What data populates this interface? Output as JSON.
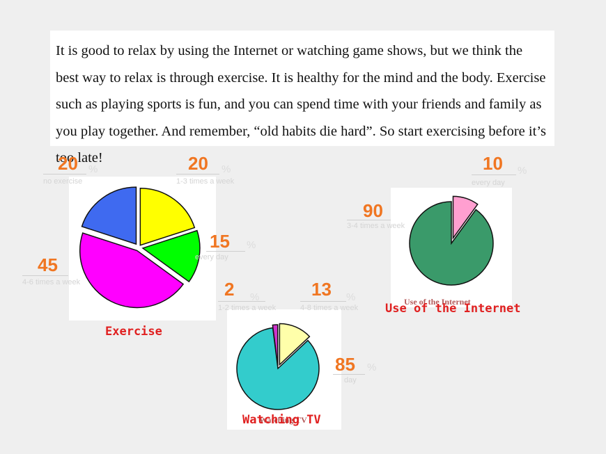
{
  "passage": {
    "text": "It is good to relax by using the Internet or watching game shows, but we think the best way to relax is through exercise. It is healthy for the mind and the body. Exercise such as playing sports is fun, and you can spend time with your friends and family as you play together. And remember, “old habits die hard”. So start exercising before it’s too late!"
  },
  "labels": {
    "percent_sign": "%",
    "no_exercise": "no exercise",
    "once_a_week": "1-3 times a week",
    "every_day": "every day",
    "four_six": "4-6 times a week",
    "three_four": "3-4 times a week",
    "one_two": "1-2 times a week",
    "four_eight": "4-8 times a week",
    "day": "day"
  },
  "chart_data": [
    {
      "type": "pie",
      "title": "Exercise",
      "slices": [
        {
          "value": 20,
          "color": "#ffff00"
        },
        {
          "value": 15,
          "color": "#00ff00"
        },
        {
          "value": 45,
          "color": "#ff00ff"
        },
        {
          "value": 20,
          "color": "#3f6af0"
        }
      ],
      "data_labels": [
        "20",
        "15",
        "45",
        "20"
      ]
    },
    {
      "type": "pie",
      "title": "Use of the Internet",
      "image_title": "Use of the Internet",
      "slices": [
        {
          "value": 10,
          "color": "#ff9fd0"
        },
        {
          "value": 90,
          "color": "#3a9a6a"
        }
      ],
      "data_labels": [
        "10",
        "90"
      ]
    },
    {
      "type": "pie",
      "title": "Watching TV",
      "image_title": "Watching TV",
      "slices": [
        {
          "value": 13,
          "color": "#ffffaa"
        },
        {
          "value": 85,
          "color": "#33cccc"
        },
        {
          "value": 2,
          "color": "#cc33cc"
        }
      ],
      "data_labels": [
        "13",
        "85",
        "2"
      ]
    }
  ]
}
